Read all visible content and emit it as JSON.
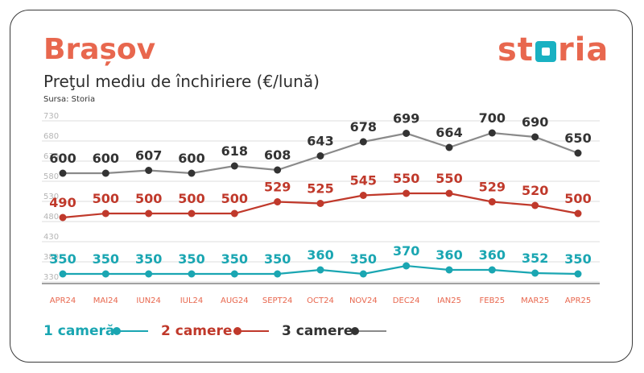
{
  "header": {
    "title": "Brașov",
    "subtitle": "Preţul mediu de închiriere (€/lună)",
    "source": "Sursa: Storia",
    "brand_before": "st",
    "brand_after": "ria"
  },
  "chart_data": {
    "type": "line",
    "categories": [
      "APR24",
      "MAI24",
      "IUN24",
      "IUL24",
      "AUG24",
      "SEPT24",
      "OCT24",
      "NOV24",
      "DEC24",
      "IAN25",
      "FEB25",
      "MAR25",
      "APR25"
    ],
    "y_ticks": [
      "730",
      "680",
      "630",
      "580",
      "530",
      "480",
      "430",
      "380",
      "330"
    ],
    "ylim": [
      330,
      730
    ],
    "grid": true,
    "legend_position": "bottom-left",
    "series": [
      {
        "name": "1 cameră",
        "color": "#1aa6b2",
        "values": [
          350,
          350,
          350,
          350,
          350,
          350,
          360,
          350,
          370,
          360,
          360,
          352,
          350
        ]
      },
      {
        "name": "2 camere",
        "color": "#c0392b",
        "values": [
          490,
          500,
          500,
          500,
          500,
          529,
          525,
          545,
          550,
          550,
          529,
          520,
          500
        ]
      },
      {
        "name": "3 camere",
        "color": "#8a8a8a",
        "values": [
          600,
          600,
          607,
          600,
          618,
          608,
          643,
          678,
          699,
          664,
          700,
          690,
          650
        ]
      }
    ],
    "label_colors": [
      "#1aa6b2",
      "#c0392b",
      "#333333"
    ]
  }
}
